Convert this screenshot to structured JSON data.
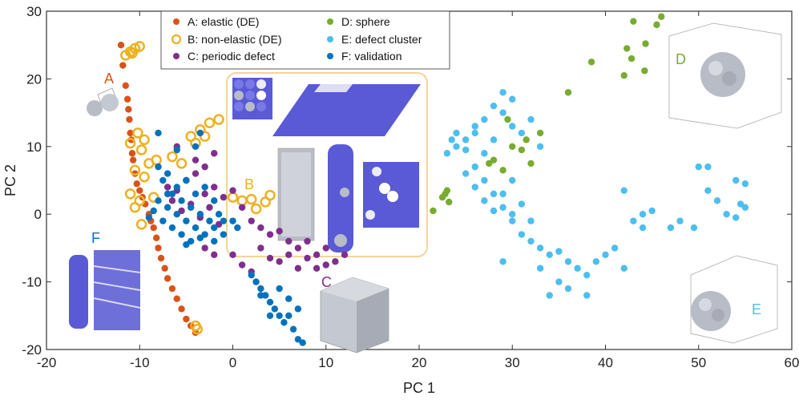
{
  "chart_data": {
    "type": "scatter",
    "xlabel": "PC 1",
    "ylabel": "PC 2",
    "xlim": [
      -20,
      60
    ],
    "ylim": [
      -20,
      30
    ],
    "xticks": [
      -20,
      -10,
      0,
      10,
      20,
      30,
      40,
      50,
      60
    ],
    "yticks": [
      -20,
      -10,
      0,
      10,
      20,
      30
    ],
    "colors": {
      "A": "#d95319",
      "B": "#edb120",
      "C": "#7e2f8e",
      "D": "#77ac30",
      "E": "#4dbeee",
      "F": "#0072bd",
      "inset_frame": "#f2d49a",
      "atom_blue": "#5a5ad6",
      "atom_gray": "#b8bcc6"
    },
    "legend": [
      {
        "key": "A",
        "label": "A: elastic (DE)",
        "marker": "filled"
      },
      {
        "key": "B",
        "label": "B: non-elastic (DE)",
        "marker": "open"
      },
      {
        "key": "C",
        "label": "C: periodic defect",
        "marker": "filled"
      },
      {
        "key": "D",
        "label": "D: sphere",
        "marker": "filled"
      },
      {
        "key": "E",
        "label": "E: defect cluster",
        "marker": "filled"
      },
      {
        "key": "F",
        "label": "F: validation",
        "marker": "filled"
      }
    ],
    "annotations": [
      {
        "text": "A",
        "key": "A"
      },
      {
        "text": "B",
        "key": "B"
      },
      {
        "text": "C",
        "key": "C"
      },
      {
        "text": "D",
        "key": "D"
      },
      {
        "text": "E",
        "key": "E"
      },
      {
        "text": "F",
        "key": "F"
      }
    ],
    "series": [
      {
        "name": "A: elastic (DE)",
        "key": "A",
        "points": [
          [
            -12,
            25
          ],
          [
            -11.8,
            22
          ],
          [
            -11.5,
            19
          ],
          [
            -11.3,
            17
          ],
          [
            -11.2,
            15.5
          ],
          [
            -11.1,
            14
          ],
          [
            -11,
            12
          ],
          [
            -10.9,
            11
          ],
          [
            -10.8,
            9
          ],
          [
            -10.7,
            8
          ],
          [
            -10.5,
            6
          ],
          [
            -10.3,
            4.5
          ],
          [
            -10,
            3.5
          ],
          [
            -9.7,
            2.5
          ],
          [
            -9.4,
            1.5
          ],
          [
            -9,
            0
          ],
          [
            -8.8,
            -1
          ],
          [
            -8.5,
            -2
          ],
          [
            -8.2,
            -3.5
          ],
          [
            -8,
            -5
          ],
          [
            -7.7,
            -6.5
          ],
          [
            -7.3,
            -8
          ],
          [
            -7,
            -9.5
          ],
          [
            -6.5,
            -11
          ],
          [
            -6,
            -12.5
          ],
          [
            -5.5,
            -14
          ],
          [
            -5,
            -15.5
          ],
          [
            -4.5,
            -16.5
          ],
          [
            -4,
            -17.5
          ]
        ]
      },
      {
        "name": "B: non-elastic (DE)",
        "key": "B",
        "points": [
          [
            -11,
            24
          ],
          [
            -10.5,
            24.5
          ],
          [
            -10,
            24.8
          ],
          [
            -11.5,
            23.5
          ],
          [
            -10.8,
            23.8
          ],
          [
            -10.2,
            12
          ],
          [
            -9.5,
            11
          ],
          [
            -11,
            10.5
          ],
          [
            -9.8,
            9.5
          ],
          [
            -9,
            7.5
          ],
          [
            -10.5,
            6.5
          ],
          [
            -9.5,
            5.5
          ],
          [
            -11,
            3
          ],
          [
            -10,
            2
          ],
          [
            -8.5,
            2.5
          ],
          [
            -10.5,
            1
          ],
          [
            -9.8,
            -1.5
          ],
          [
            -4.5,
            11.5
          ],
          [
            -3.5,
            12.5
          ],
          [
            -2.5,
            13.5
          ],
          [
            -1.5,
            14
          ],
          [
            -4,
            10.5
          ],
          [
            -3,
            11.5
          ],
          [
            -6.5,
            8.5
          ],
          [
            -5.5,
            7.5
          ],
          [
            -8.2,
            8
          ],
          [
            0,
            2.5
          ],
          [
            1,
            2
          ],
          [
            2,
            2.2
          ],
          [
            3.5,
            1.8
          ],
          [
            2.5,
            0.8
          ],
          [
            4,
            2.8
          ],
          [
            -4,
            -16.5
          ],
          [
            -3.8,
            -17
          ]
        ]
      },
      {
        "name": "C: periodic defect",
        "key": "C",
        "points": [
          [
            -7,
            4
          ],
          [
            -6,
            3.5
          ],
          [
            -5,
            5
          ],
          [
            -4,
            6
          ],
          [
            -3,
            3
          ],
          [
            -2,
            4
          ],
          [
            -1,
            2.5
          ],
          [
            0,
            3.5
          ],
          [
            -6.5,
            2
          ],
          [
            -5.5,
            0.5
          ],
          [
            -4.5,
            1.5
          ],
          [
            -3.5,
            -0.5
          ],
          [
            -2.5,
            1
          ],
          [
            -1.5,
            -1.5
          ],
          [
            1,
            1
          ],
          [
            2,
            -1
          ],
          [
            3,
            -2
          ],
          [
            4,
            -3
          ],
          [
            5,
            -2.5
          ],
          [
            6,
            -4
          ],
          [
            7,
            -5
          ],
          [
            8,
            -4
          ],
          [
            9,
            -6
          ],
          [
            10,
            -5
          ],
          [
            11,
            -7
          ],
          [
            12,
            -6
          ],
          [
            3,
            -5
          ],
          [
            4,
            -6.5
          ],
          [
            5,
            -7
          ],
          [
            6,
            -6
          ],
          [
            7,
            -8
          ],
          [
            8,
            -6.5
          ],
          [
            9,
            -8
          ],
          [
            10,
            -7.5
          ],
          [
            -2,
            -6
          ],
          [
            -3,
            -5
          ],
          [
            0,
            -6
          ],
          [
            1,
            -7.5
          ],
          [
            2,
            -8.5
          ],
          [
            -4,
            8
          ],
          [
            -6,
            10
          ],
          [
            -2,
            9
          ],
          [
            -3,
            7
          ]
        ]
      },
      {
        "name": "D: sphere",
        "key": "D",
        "points": [
          [
            21.5,
            0.5
          ],
          [
            22.5,
            2.5
          ],
          [
            23,
            3.5
          ],
          [
            23.2,
            1.8
          ],
          [
            22.8,
            3
          ],
          [
            27.5,
            7.5
          ],
          [
            28,
            8
          ],
          [
            29,
            6.5
          ],
          [
            30,
            10
          ],
          [
            31,
            9.5
          ],
          [
            32,
            7.5
          ],
          [
            33,
            12
          ],
          [
            29.5,
            14
          ],
          [
            31.5,
            11
          ],
          [
            36,
            18
          ],
          [
            38.5,
            22.5
          ],
          [
            42,
            20.5
          ],
          [
            42.3,
            24.5
          ],
          [
            42.8,
            23
          ],
          [
            44.2,
            21.2
          ],
          [
            44.3,
            25.2
          ],
          [
            43,
            28.5
          ],
          [
            45.5,
            28
          ],
          [
            46,
            29.2
          ]
        ]
      },
      {
        "name": "E: defect cluster",
        "key": "E",
        "points": [
          [
            23,
            9
          ],
          [
            24,
            10
          ],
          [
            25,
            11
          ],
          [
            26,
            12
          ],
          [
            27,
            14
          ],
          [
            28,
            16
          ],
          [
            29,
            18
          ],
          [
            30,
            17
          ],
          [
            29,
            15
          ],
          [
            30,
            13
          ],
          [
            31,
            12
          ],
          [
            32,
            14
          ],
          [
            33,
            10
          ],
          [
            26,
            7
          ],
          [
            27,
            5
          ],
          [
            28,
            3
          ],
          [
            29,
            1
          ],
          [
            30,
            -1
          ],
          [
            31,
            -3
          ],
          [
            32,
            -4
          ],
          [
            33,
            -5
          ],
          [
            34,
            -6
          ],
          [
            35,
            -5.5
          ],
          [
            36,
            -7
          ],
          [
            37,
            -8
          ],
          [
            38,
            -9
          ],
          [
            39,
            -7
          ],
          [
            40,
            -6
          ],
          [
            41,
            -5
          ],
          [
            42,
            -8
          ],
          [
            35,
            -10
          ],
          [
            36,
            -11
          ],
          [
            38,
            -12
          ],
          [
            34,
            -12
          ],
          [
            33,
            -8
          ],
          [
            29,
            -7
          ],
          [
            27,
            2
          ],
          [
            28,
            0.5
          ],
          [
            30,
            0
          ],
          [
            31,
            1.5
          ],
          [
            32,
            -1
          ],
          [
            26,
            4
          ],
          [
            29,
            3
          ],
          [
            30,
            5
          ],
          [
            25,
            6
          ],
          [
            27,
            9
          ],
          [
            28,
            11
          ],
          [
            26,
            13
          ],
          [
            25,
            9.5
          ],
          [
            24,
            12
          ],
          [
            23.5,
            11
          ],
          [
            42,
            3.5
          ],
          [
            43,
            -1
          ],
          [
            44,
            0
          ],
          [
            45,
            0.5
          ],
          [
            44,
            -2
          ],
          [
            47,
            -2
          ],
          [
            48,
            -1
          ],
          [
            50,
            7
          ],
          [
            51,
            7
          ],
          [
            52,
            2
          ],
          [
            53,
            0
          ],
          [
            54,
            5
          ],
          [
            55,
            4.5
          ],
          [
            55,
            1
          ],
          [
            54.5,
            1.5
          ],
          [
            51,
            3.5
          ],
          [
            49.5,
            -2
          ],
          [
            54,
            -0.5
          ]
        ]
      },
      {
        "name": "F: validation",
        "key": "F",
        "points": [
          [
            -8,
            7
          ],
          [
            -7.5,
            5
          ],
          [
            -7,
            6
          ],
          [
            -6,
            4
          ],
          [
            -5,
            5
          ],
          [
            -4,
            3
          ],
          [
            -3,
            4
          ],
          [
            -2,
            2
          ],
          [
            -8,
            2
          ],
          [
            -7,
            1
          ],
          [
            -6,
            0
          ],
          [
            -5,
            -1
          ],
          [
            -4,
            -2
          ],
          [
            -3,
            -3
          ],
          [
            -2,
            -2
          ],
          [
            -1,
            -1
          ],
          [
            0,
            -1
          ],
          [
            -6.5,
            3
          ],
          [
            -5.5,
            2
          ],
          [
            -4.5,
            1
          ],
          [
            -3.5,
            0
          ],
          [
            -2.5,
            -1
          ],
          [
            -1.5,
            0
          ],
          [
            -7.5,
            -1
          ],
          [
            -6.5,
            -2
          ],
          [
            -5.5,
            -3
          ],
          [
            -4.5,
            -4
          ],
          [
            -3.5,
            -3.5
          ],
          [
            -8.5,
            0.5
          ],
          [
            -9,
            -0.5
          ],
          [
            -7,
            3
          ],
          [
            -5,
            -4.5
          ],
          [
            -2,
            -4
          ],
          [
            -1,
            -3
          ],
          [
            0.5,
            -2
          ],
          [
            2,
            -9
          ],
          [
            2.5,
            -10
          ],
          [
            3,
            -11
          ],
          [
            3.5,
            -12
          ],
          [
            4,
            -13
          ],
          [
            4.5,
            -14
          ],
          [
            5,
            -15
          ],
          [
            5.5,
            -16
          ],
          [
            6,
            -15
          ],
          [
            6.5,
            -17
          ],
          [
            7,
            -18.5
          ],
          [
            7.5,
            -19
          ],
          [
            5,
            -11
          ],
          [
            6,
            -12.5
          ],
          [
            7,
            -14
          ],
          [
            3,
            -12
          ],
          [
            4,
            -15
          ],
          [
            -6,
            9.5
          ],
          [
            -8,
            12
          ],
          [
            -3.5,
            12
          ],
          [
            -4,
            10
          ]
        ]
      }
    ]
  }
}
